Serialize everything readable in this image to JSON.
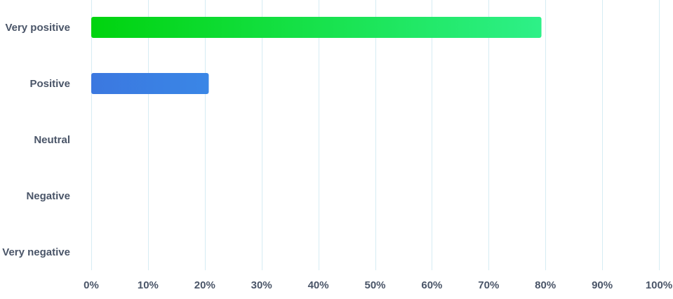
{
  "chart_data": {
    "type": "bar",
    "orientation": "horizontal",
    "categories": [
      "Very positive",
      "Positive",
      "Neutral",
      "Negative",
      "Very negative"
    ],
    "values": [
      79.3,
      20.7,
      0,
      0,
      0
    ],
    "xlim": [
      0,
      100
    ],
    "x_ticks": [
      0,
      10,
      20,
      30,
      40,
      50,
      60,
      70,
      80,
      90,
      100
    ],
    "x_tick_labels": [
      "0%",
      "10%",
      "20%",
      "30%",
      "40%",
      "50%",
      "60%",
      "70%",
      "80%",
      "90%",
      "100%"
    ],
    "grid": "vertical",
    "bar_colors": [
      [
        "#00d30e",
        "#2ef088"
      ],
      [
        "#3b78e0",
        "#3a86e6"
      ],
      [
        "#999999",
        "#999999"
      ],
      [
        "#999999",
        "#999999"
      ],
      [
        "#999999",
        "#999999"
      ]
    ],
    "grid_color": "#d6ecf3",
    "label_color": "#4a5568"
  }
}
